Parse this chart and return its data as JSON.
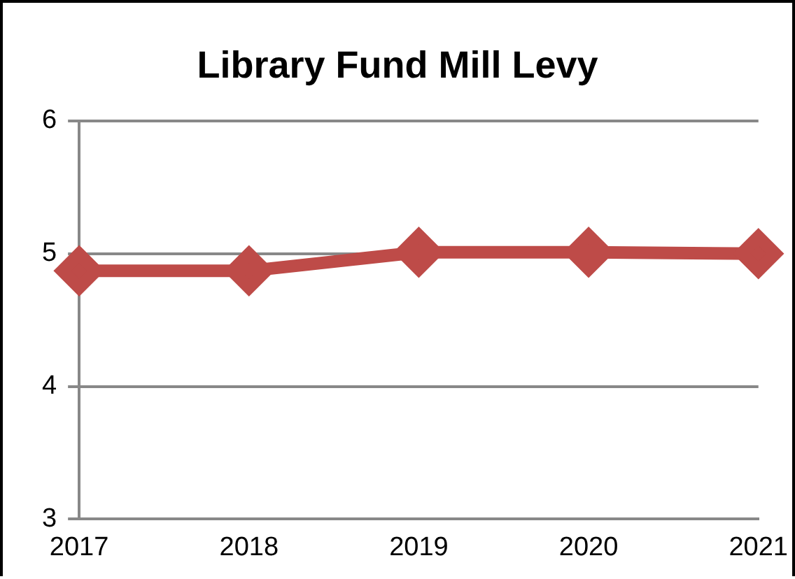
{
  "chart_data": {
    "type": "line",
    "title": "Library Fund Mill Levy",
    "categories": [
      "2017",
      "2018",
      "2019",
      "2020",
      "2021"
    ],
    "series": [
      {
        "color": "#be4b48",
        "values": [
          4.87,
          4.87,
          5.01,
          5.01,
          5.0
        ]
      }
    ],
    "ylim": [
      3,
      6
    ],
    "yticks": [
      3,
      4,
      5,
      6
    ],
    "grid": "y",
    "legend": false,
    "marker": "diamond",
    "line_style": "solid"
  }
}
